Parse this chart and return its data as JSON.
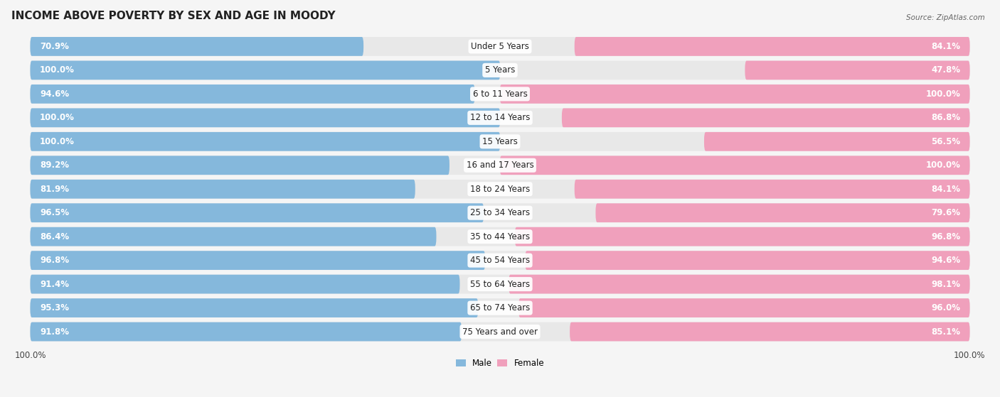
{
  "title": "INCOME ABOVE POVERTY BY SEX AND AGE IN MOODY",
  "source": "Source: ZipAtlas.com",
  "categories": [
    "Under 5 Years",
    "5 Years",
    "6 to 11 Years",
    "12 to 14 Years",
    "15 Years",
    "16 and 17 Years",
    "18 to 24 Years",
    "25 to 34 Years",
    "35 to 44 Years",
    "45 to 54 Years",
    "55 to 64 Years",
    "65 to 74 Years",
    "75 Years and over"
  ],
  "male_values": [
    70.9,
    100.0,
    94.6,
    100.0,
    100.0,
    89.2,
    81.9,
    96.5,
    86.4,
    96.8,
    91.4,
    95.3,
    91.8
  ],
  "female_values": [
    84.1,
    47.8,
    100.0,
    86.8,
    56.5,
    100.0,
    84.1,
    79.6,
    96.8,
    94.6,
    98.1,
    96.0,
    85.1
  ],
  "male_color": "#85b8dc",
  "female_color": "#f0a0bc",
  "male_label": "Male",
  "female_label": "Female",
  "background_color": "#f5f5f5",
  "row_bg_color": "#e8e8e8",
  "max_value": 100.0,
  "title_fontsize": 11,
  "label_fontsize": 8.5,
  "tick_fontsize": 8.5,
  "value_fontsize": 8.5
}
